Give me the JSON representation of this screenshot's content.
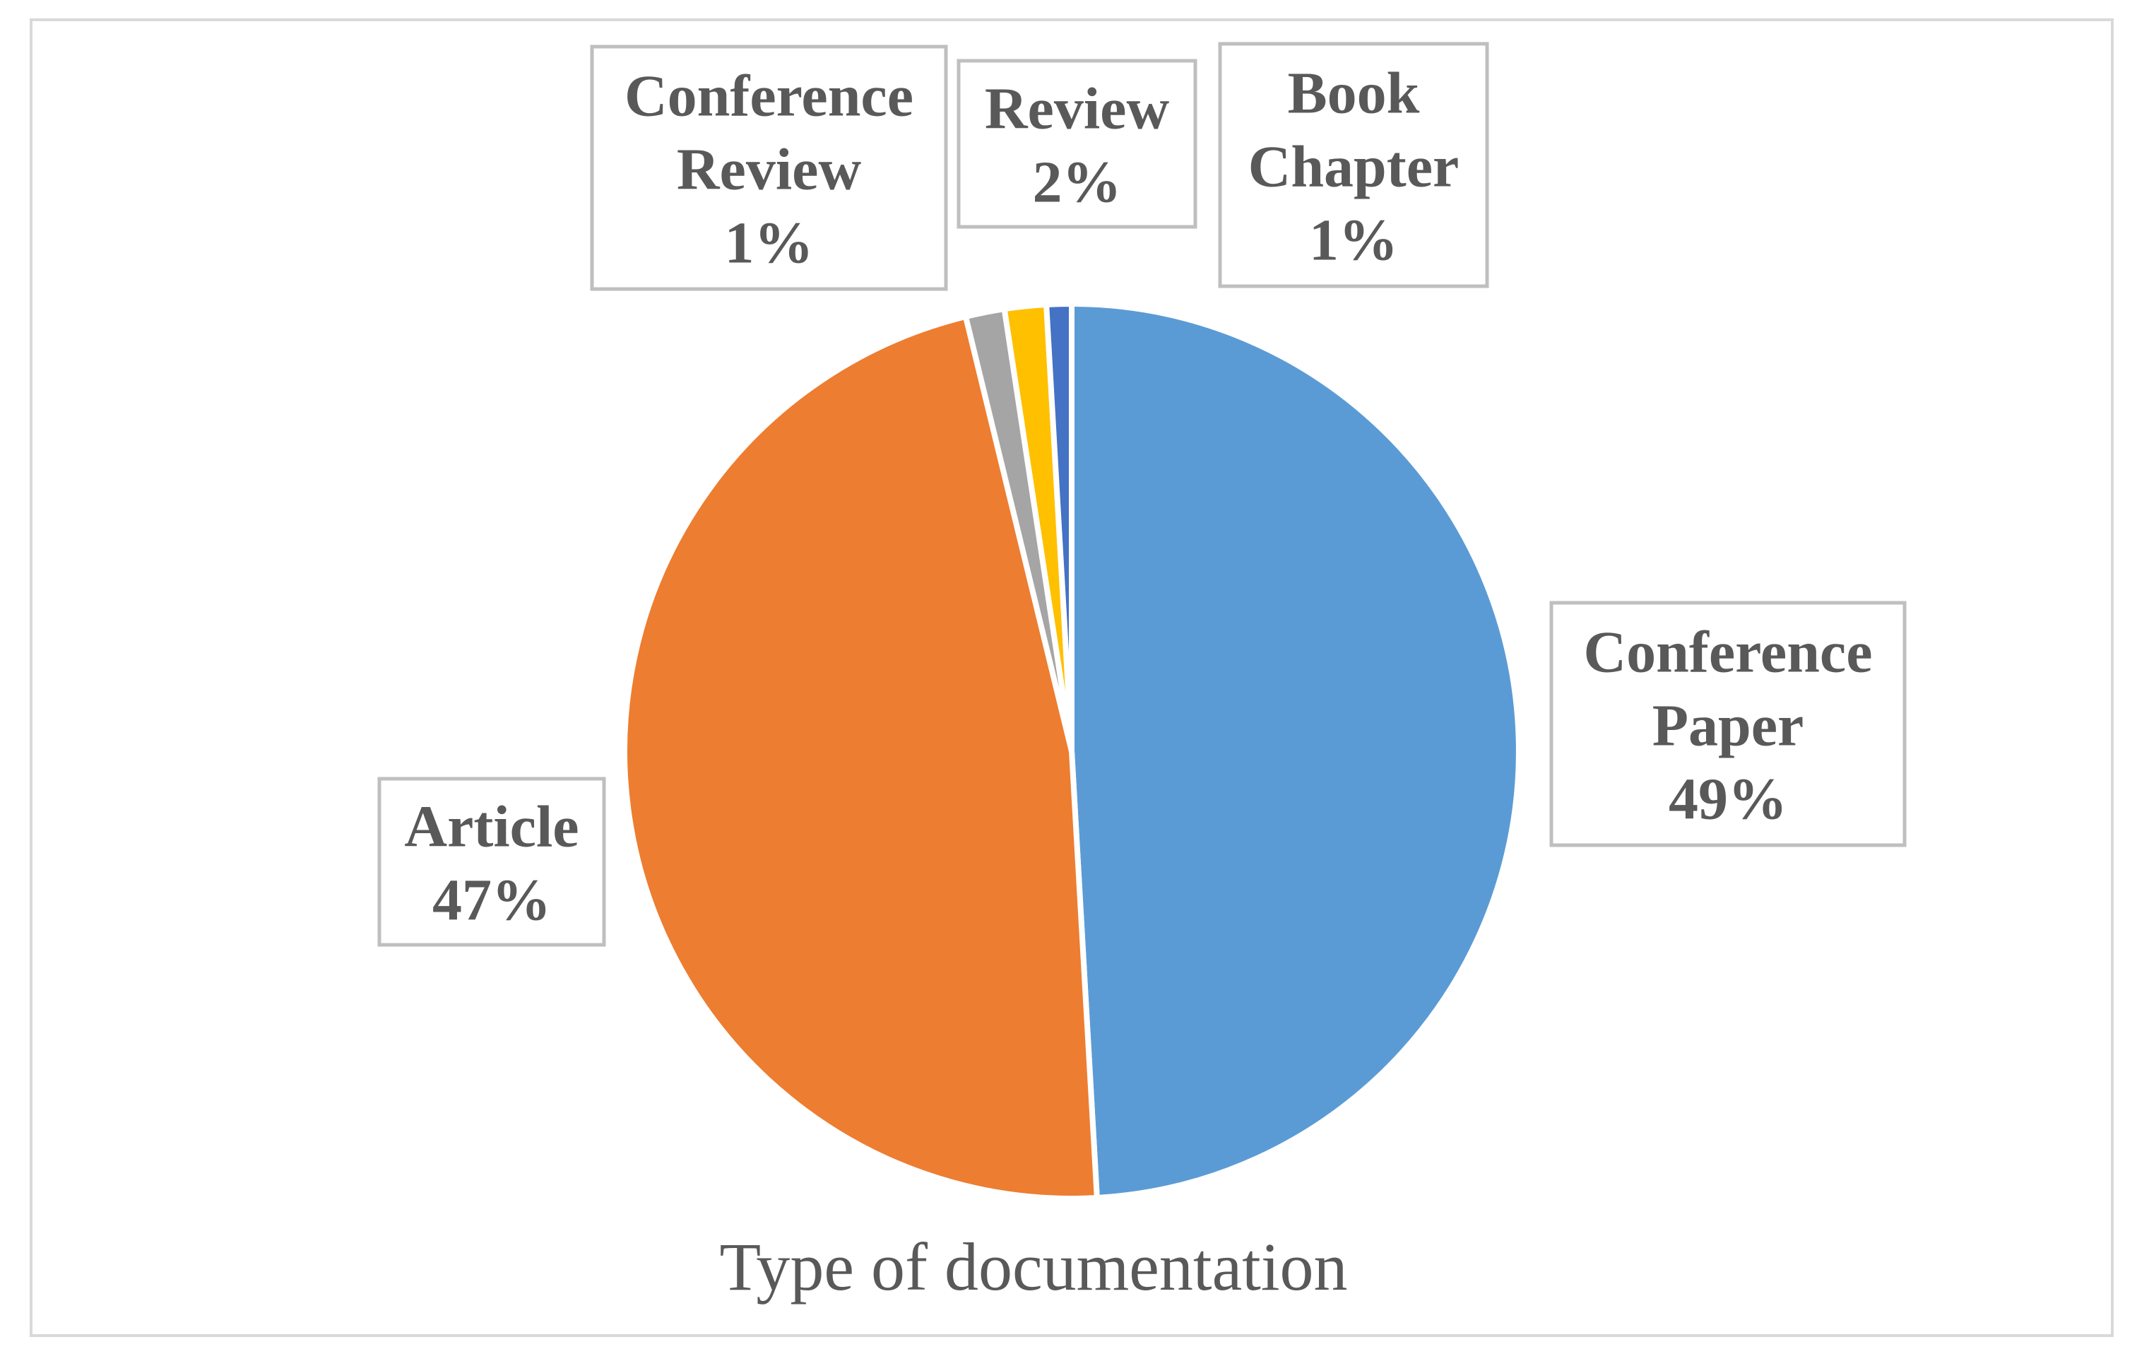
{
  "chart_data": {
    "type": "pie",
    "title": "Type of documentation",
    "slices": [
      {
        "name": "Conference Paper",
        "label_lines": [
          "Conference",
          "Paper"
        ],
        "value": 49,
        "display": "49%",
        "color": "#5b9bd5"
      },
      {
        "name": "Article",
        "label_lines": [
          "Article"
        ],
        "value": 47,
        "display": "47%",
        "color": "#ed7d31"
      },
      {
        "name": "Conference Review",
        "label_lines": [
          "Conference",
          "Review"
        ],
        "value": 1.4,
        "display": "1%",
        "color": "#a5a5a5"
      },
      {
        "name": "Review",
        "label_lines": [
          "Review"
        ],
        "value": 1.5,
        "display": "2%",
        "color": "#ffc000"
      },
      {
        "name": "Book Chapter",
        "label_lines": [
          "Book",
          "Chapter"
        ],
        "value": 0.9,
        "display": "1%",
        "color": "#4472c4"
      }
    ]
  }
}
